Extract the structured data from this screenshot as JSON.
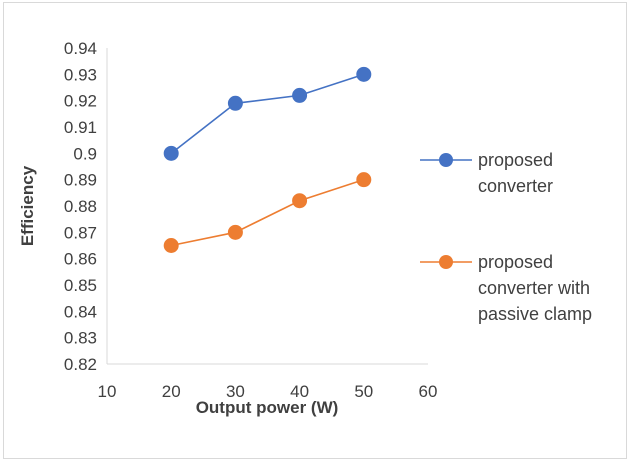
{
  "chart_data": {
    "type": "line",
    "title": "",
    "xlabel": "Output power (W)",
    "ylabel": "Efficiency",
    "xlim": [
      10,
      60
    ],
    "ylim": [
      0.82,
      0.94
    ],
    "xticks": [
      "10",
      "20",
      "30",
      "40",
      "50",
      "60"
    ],
    "yticks": [
      "0.82",
      "0.83",
      "0.84",
      "0.85",
      "0.86",
      "0.87",
      "0.88",
      "0.89",
      "0.9",
      "0.91",
      "0.92",
      "0.93",
      "0.94"
    ],
    "grid": false,
    "legend_position": "right",
    "series": [
      {
        "name": "proposed converter",
        "legend_lines": [
          "proposed",
          "converter"
        ],
        "color": "#4472c4",
        "x": [
          20,
          30,
          40,
          50
        ],
        "y": [
          0.9,
          0.919,
          0.922,
          0.93
        ]
      },
      {
        "name": "proposed converter with passive clamp",
        "legend_lines": [
          "proposed",
          "converter with",
          "passive clamp"
        ],
        "color": "#ed7d31",
        "x": [
          20,
          30,
          40,
          50
        ],
        "y": [
          0.865,
          0.87,
          0.882,
          0.89
        ]
      }
    ]
  }
}
